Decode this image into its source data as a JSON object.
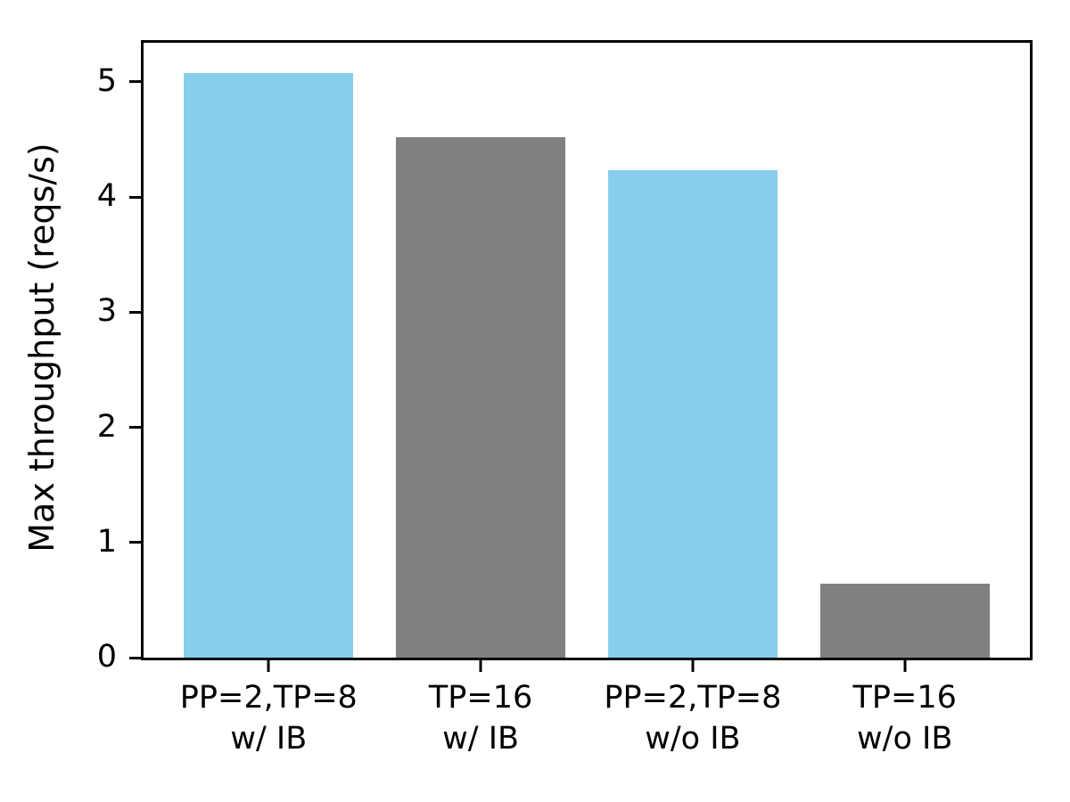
{
  "chart_data": {
    "type": "bar",
    "title": "",
    "xlabel": "",
    "ylabel": "Max throughput (reqs/s)",
    "categories": [
      [
        "PP=2,TP=8",
        "w/ IB"
      ],
      [
        "TP=16",
        "w/ IB"
      ],
      [
        "PP=2,TP=8",
        "w/o IB"
      ],
      [
        "TP=16",
        "w/o IB"
      ]
    ],
    "values": [
      5.08,
      4.52,
      4.23,
      0.64
    ],
    "bar_colors": [
      "#87CEEB",
      "#808080",
      "#87CEEB",
      "#808080"
    ],
    "yticks": [
      0,
      1,
      2,
      3,
      4,
      5
    ],
    "ylim": [
      0,
      5.34
    ],
    "xlim": [
      -0.59,
      3.59
    ],
    "bar_width": 0.8,
    "grid": false,
    "legend": "none",
    "colors": {
      "bar_blue": "#87CEEB",
      "bar_gray": "#808080",
      "axis": "#000000",
      "background": "#ffffff"
    }
  }
}
